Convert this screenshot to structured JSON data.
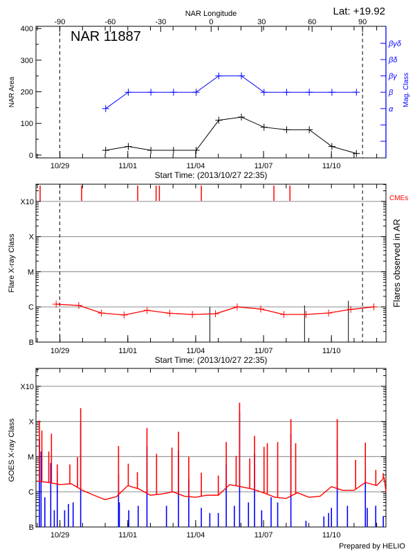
{
  "header": {
    "lat_label": "Lat: +19.92",
    "title": "NAR 11887"
  },
  "footer": {
    "credit": "Prepared by HELIO"
  },
  "colors": {
    "area": "#000000",
    "mag_class": "#0000ff",
    "flare": "#ff0000",
    "cme": "#ff0000",
    "goes_long": "#ff0000",
    "goes_short": "#0000ff",
    "grid": "#999999"
  },
  "chart_data": [
    {
      "type": "line",
      "panel": "nar",
      "xlabel": "Start Time: (2013/10/27 22:35)",
      "ylabel": "NAR Area",
      "y2label": "Mag. Class",
      "x2label": "NAR Longitude",
      "xlim": [
        "10/27 22:35",
        "11/12 09:50"
      ],
      "x_ticks": [
        "10/29",
        "11/01",
        "11/04",
        "11/07",
        "11/10"
      ],
      "ylim": [
        -9,
        407
      ],
      "y_ticks": [
        0,
        100,
        200,
        300,
        400
      ],
      "lon_ticks": [
        -90,
        -60,
        -30,
        0,
        30,
        60,
        90
      ],
      "limb_lines": [
        "10/28 23:50",
        "11/11 09:00"
      ],
      "mag_class_ticks": [
        "",
        "",
        "α",
        "β",
        "βγ",
        "βδ",
        "βγδ"
      ],
      "area": {
        "x": [
          "10/31 00:30",
          "11/01 00:30",
          "11/02 00:30",
          "11/03 00:30",
          "11/04 00:30",
          "11/05 00:30",
          "11/06 00:30",
          "11/07 00:30",
          "11/08 00:30",
          "11/09 00:30",
          "11/10 00:30",
          "11/11 02:30"
        ],
        "values": [
          15,
          27,
          15,
          15,
          15,
          110,
          120,
          88,
          80,
          80,
          27,
          5
        ]
      },
      "mag_class": {
        "x": [
          "10/31 00:30",
          "11/01 00:30",
          "11/02 00:30",
          "11/03 00:30",
          "11/04 00:30",
          "11/05 00:30",
          "11/06 00:30",
          "11/07 00:30",
          "11/08 00:30",
          "11/09 00:30",
          "11/10 00:30",
          "11/11 02:30"
        ],
        "values": [
          "α",
          "β",
          "β",
          "β",
          "β",
          "βγ",
          "βγ",
          "β",
          "β",
          "β",
          "β",
          "β"
        ]
      }
    },
    {
      "type": "line",
      "panel": "flares",
      "xlabel": "Start Time: (2013/10/27 22:35)",
      "ylabel": "Flare X-ray Class",
      "y2label": "Flares observed in AR",
      "cme_label": "CMEs",
      "y_scale": "log",
      "ylim": [
        1e-07,
        0.001
      ],
      "y_ticks": [
        {
          "label": "B",
          "value": 1e-07
        },
        {
          "label": "C",
          "value": 1e-06
        },
        {
          "label": "M",
          "value": 1e-05
        },
        {
          "label": "X",
          "value": 0.0001
        },
        {
          "label": "X10",
          "value": 0.001
        }
      ],
      "x_ticks": [
        "10/29",
        "11/01",
        "11/04",
        "11/07",
        "11/10"
      ],
      "grid": true,
      "series": {
        "x": [
          "10/28 20:00",
          "10/29 20:00",
          "10/30 20:00",
          "10/31 20:00",
          "11/01 20:30",
          "11/02 20:30",
          "11/03 20:30",
          "11/04 21:00",
          "11/05 20:00",
          "11/06 21:00",
          "11/07 21:30",
          "11/08 21:00",
          "11/09 21:00",
          "11/10 20:30",
          "11/11 21:00"
        ],
        "values": [
          1.2e-06,
          1.1e-06,
          6.7e-07,
          5.9e-07,
          8e-07,
          6.6e-07,
          6.1e-07,
          6.4e-07,
          1e-06,
          8.7e-07,
          6.1e-07,
          6.1e-07,
          6.7e-07,
          8.5e-07,
          1e-06
        ]
      },
      "flares": [
        {
          "time": "11/04 15:00",
          "value": 1e-06
        },
        {
          "time": "11/08 19:30",
          "value": 1.1e-06
        },
        {
          "time": "11/10 18:00",
          "value": 1.5e-06
        }
      ],
      "cmes": [
        "10/28 03:00",
        "10/29 23:00",
        "11/01 10:30",
        "11/02 06:00",
        "11/02 09:30",
        "11/04 06:00",
        "11/07 11:00",
        "11/08 04:00"
      ]
    },
    {
      "type": "line",
      "panel": "goes",
      "ylabel": "GOES X-ray Class",
      "y_scale": "log",
      "ylim": [
        1e-07,
        0.001
      ],
      "y_ticks": [
        {
          "label": "B",
          "value": 1e-07
        },
        {
          "label": "C",
          "value": 1e-06
        },
        {
          "label": "M",
          "value": 1e-05
        },
        {
          "label": "X",
          "value": 0.0001
        },
        {
          "label": "X10",
          "value": 0.001
        }
      ],
      "x_ticks": [
        "10/29",
        "11/01",
        "11/04",
        "11/07",
        "11/10"
      ],
      "grid": true,
      "long_channel_background": {
        "x": [
          "10/28 00:00",
          "10/28 12:00",
          "10/29 00:00",
          "10/29 12:00",
          "10/30 00:00",
          "10/30 12:00",
          "10/31 00:00",
          "10/31 12:00",
          "11/01 00:00",
          "11/01 12:00",
          "11/02 00:00",
          "11/02 12:00",
          "11/03 00:00",
          "11/03 12:00",
          "11/04 00:00",
          "11/04 12:00",
          "11/05 00:00",
          "11/05 12:00",
          "11/06 00:00",
          "11/06 12:00",
          "11/07 00:00",
          "11/07 12:00",
          "11/08 00:00",
          "11/08 12:00",
          "11/09 00:00",
          "11/09 12:00",
          "11/10 00:00",
          "11/10 12:00",
          "11/11 00:00",
          "11/11 12:00",
          "11/12 00:00",
          "11/12 08:00",
          "11/12 09:50"
        ],
        "values": [
          2e-06,
          1.85e-06,
          1.6e-06,
          1.7e-06,
          1.1e-06,
          8e-07,
          6e-07,
          7.3e-07,
          1.5e-06,
          1.2e-06,
          8e-07,
          8.7e-07,
          1e-06,
          7.5e-07,
          7e-07,
          8e-07,
          8e-07,
          1.6e-06,
          1.4e-06,
          1.2e-06,
          9.4e-07,
          7e-07,
          6.5e-07,
          9.4e-07,
          7e-07,
          7.5e-07,
          1.4e-06,
          1.1e-06,
          1.1e-06,
          1.85e-06,
          1.5e-06,
          2.5e-06,
          1e-06
        ]
      },
      "long_channel_peaks": [
        [
          "10/28 02:15",
          0.000105
        ],
        [
          "10/28 04:50",
          5.5e-05
        ],
        [
          "10/28 12:10",
          1.4e-05
        ],
        [
          "10/28 15:00",
          4.5e-05
        ],
        [
          "10/28 21:10",
          6e-06
        ],
        [
          "10/29 10:30",
          6e-06
        ],
        [
          "10/29 18:40",
          9.7e-06
        ],
        [
          "10/29 22:00",
          0.00024
        ],
        [
          "10/31 14:10",
          2e-05
        ],
        [
          "11/01 00:30",
          6.3e-06
        ],
        [
          "11/01 10:10",
          3.6e-06
        ],
        [
          "11/01 20:20",
          6.5e-05
        ],
        [
          "11/02 06:30",
          1.2e-05
        ],
        [
          "11/02 22:50",
          1.8e-05
        ],
        [
          "11/03 05:45",
          5.1e-05
        ],
        [
          "11/03 16:40",
          1e-05
        ],
        [
          "11/04 06:00",
          3.5e-06
        ],
        [
          "11/05 00:00",
          2.9e-06
        ],
        [
          "11/05 08:25",
          2.6e-05
        ],
        [
          "11/05 18:55",
          1.05e-05
        ],
        [
          "11/05 22:35",
          0.00034
        ],
        [
          "11/06 09:20",
          8.9e-06
        ],
        [
          "11/06 14:25",
          3.9e-05
        ],
        [
          "11/07 00:30",
          1.9e-05
        ],
        [
          "11/07 04:00",
          2.4e-05
        ],
        [
          "11/07 15:00",
          2.6e-05
        ],
        [
          "11/08 05:00",
          0.000117
        ],
        [
          "11/08 10:05",
          2.4e-05
        ],
        [
          "11/10 06:10",
          0.000117
        ],
        [
          "11/11 01:40",
          8.1e-06
        ],
        [
          "11/11 12:00",
          2.5e-05
        ],
        [
          "11/11 23:05",
          4.2e-06
        ],
        [
          "11/12 07:00",
          3.4e-06
        ]
      ],
      "short_channel_peaks": [
        [
          "10/28 02:15",
          3.2e-05
        ],
        [
          "10/28 04:00",
          1.4e-05
        ],
        [
          "10/28 08:00",
          7e-07
        ],
        [
          "10/28 14:15",
          6.6e-06
        ],
        [
          "10/28 18:00",
          3e-07
        ],
        [
          "10/28 21:10",
          3.4e-06
        ],
        [
          "10/29 05:00",
          3e-07
        ],
        [
          "10/29 09:00",
          4.5e-07
        ],
        [
          "10/29 14:00",
          5e-07
        ],
        [
          "10/29 22:00",
          9.3e-05
        ],
        [
          "10/31 14:10",
          3.2e-06
        ],
        [
          "10/31 15:00",
          5e-07
        ],
        [
          "11/01 01:00",
          3e-07
        ],
        [
          "11/01 11:00",
          4e-07
        ],
        [
          "11/01 20:20",
          1.9e-05
        ],
        [
          "11/02 17:00",
          4e-07
        ],
        [
          "11/03 05:45",
          1.5e-05
        ],
        [
          "11/03 16:40",
          2.3e-06
        ],
        [
          "11/04 06:00",
          3.5e-07
        ],
        [
          "11/04 15:00",
          2.5e-07
        ],
        [
          "11/05 00:00",
          2.5e-07
        ],
        [
          "11/05 08:25",
          6.2e-06
        ],
        [
          "11/05 17:00",
          4e-07
        ],
        [
          "11/05 22:35",
          0.00018
        ],
        [
          "11/06 08:00",
          5e-07
        ],
        [
          "11/06 14:25",
          1.2e-05
        ],
        [
          "11/06 22:00",
          3e-07
        ],
        [
          "11/07 08:00",
          7e-07
        ],
        [
          "11/07 15:00",
          5e-07
        ],
        [
          "11/08 05:00",
          4.5e-05
        ],
        [
          "11/08 21:00",
          1.5e-07
        ],
        [
          "11/09 16:00",
          2e-07
        ],
        [
          "11/09 21:00",
          2.5e-07
        ],
        [
          "11/10 00:00",
          3.5e-07
        ],
        [
          "11/10 06:10",
          2.9e-05
        ],
        [
          "11/10 17:00",
          4e-07
        ],
        [
          "11/11 12:00",
          4.9e-06
        ],
        [
          "11/11 14:00",
          3.5e-07
        ],
        [
          "11/11 23:00",
          4e-07
        ],
        [
          "11/12 07:00",
          2e-07
        ]
      ]
    }
  ]
}
